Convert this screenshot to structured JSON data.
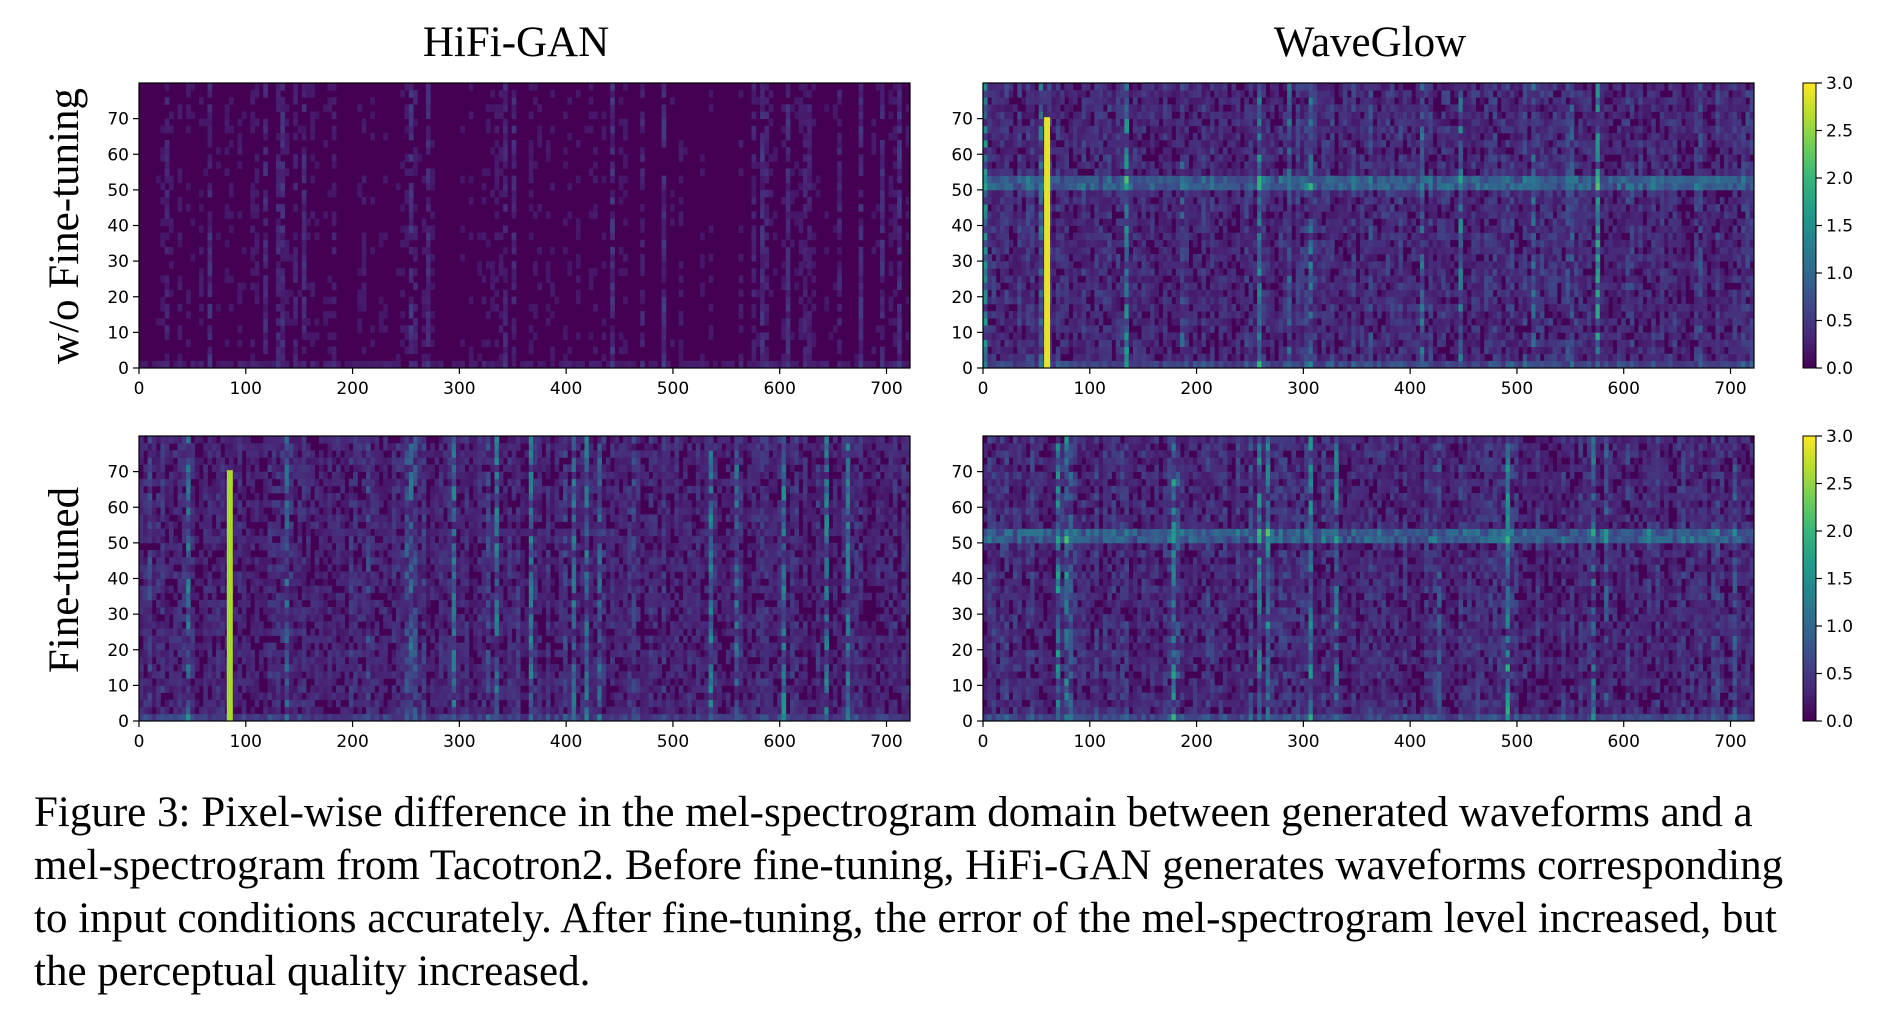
{
  "figure": {
    "col_titles": [
      "HiFi-GAN",
      "WaveGlow"
    ],
    "row_titles": [
      "w/o Fine-tuning",
      "Fine-tuned"
    ],
    "caption_lines": [
      "Figure 3: Pixel-wise difference in the mel-spectrogram domain between generated waveforms and a",
      "mel-spectrogram from Tacotron2. Before fine-tuning, HiFi-GAN generates waveforms corresponding",
      "to input conditions accurately. After fine-tuning, the error of the mel-spectrogram level increased, but",
      "the perceptual quality increased."
    ]
  },
  "colors": {
    "viridis": [
      "#440154",
      "#482878",
      "#3e4989",
      "#31688e",
      "#26828e",
      "#1f9e89",
      "#35b779",
      "#6ece58",
      "#b5de2b",
      "#fde725"
    ]
  },
  "chart_data": [
    {
      "type": "heatmap",
      "row": "w/o Fine-tuning",
      "col": "HiFi-GAN",
      "xlim": [
        0,
        722
      ],
      "ylim": [
        0,
        80
      ],
      "clim": [
        0,
        3.0
      ],
      "xticks": [
        0,
        100,
        200,
        300,
        400,
        500,
        600,
        700
      ],
      "yticks": [
        0,
        10,
        20,
        30,
        40,
        50,
        60,
        70
      ],
      "mean_level": 0.12,
      "colorbar": false
    },
    {
      "type": "heatmap",
      "row": "w/o Fine-tuning",
      "col": "WaveGlow",
      "xlim": [
        0,
        722
      ],
      "ylim": [
        0,
        80
      ],
      "clim": [
        0,
        3.0
      ],
      "xticks": [
        0,
        100,
        200,
        300,
        400,
        500,
        600,
        700
      ],
      "yticks": [
        0,
        10,
        20,
        30,
        40,
        50,
        60,
        70
      ],
      "mean_level": 0.35,
      "colorbar": true,
      "colorbar_ticks": [
        "0.0",
        "0.5",
        "1.0",
        "1.5",
        "2.0",
        "2.5",
        "3.0"
      ],
      "features": {
        "bright_column_x": 60,
        "bright_column_value": 2.9,
        "band_y": 52
      }
    },
    {
      "type": "heatmap",
      "row": "Fine-tuned",
      "col": "HiFi-GAN",
      "xlim": [
        0,
        722
      ],
      "ylim": [
        0,
        80
      ],
      "clim": [
        0,
        3.0
      ],
      "xticks": [
        0,
        100,
        200,
        300,
        400,
        500,
        600,
        700
      ],
      "yticks": [
        0,
        10,
        20,
        30,
        40,
        50,
        60,
        70
      ],
      "mean_level": 0.3,
      "colorbar": false,
      "features": {
        "bright_column_x": 85,
        "bright_column_value": 2.6
      }
    },
    {
      "type": "heatmap",
      "row": "Fine-tuned",
      "col": "WaveGlow",
      "xlim": [
        0,
        722
      ],
      "ylim": [
        0,
        80
      ],
      "clim": [
        0,
        3.0
      ],
      "xticks": [
        0,
        100,
        200,
        300,
        400,
        500,
        600,
        700
      ],
      "yticks": [
        0,
        10,
        20,
        30,
        40,
        50,
        60,
        70
      ],
      "mean_level": 0.35,
      "colorbar": true,
      "colorbar_ticks": [
        "0.0",
        "0.5",
        "1.0",
        "1.5",
        "2.0",
        "2.5",
        "3.0"
      ],
      "features": {
        "band_y": 52
      }
    }
  ]
}
